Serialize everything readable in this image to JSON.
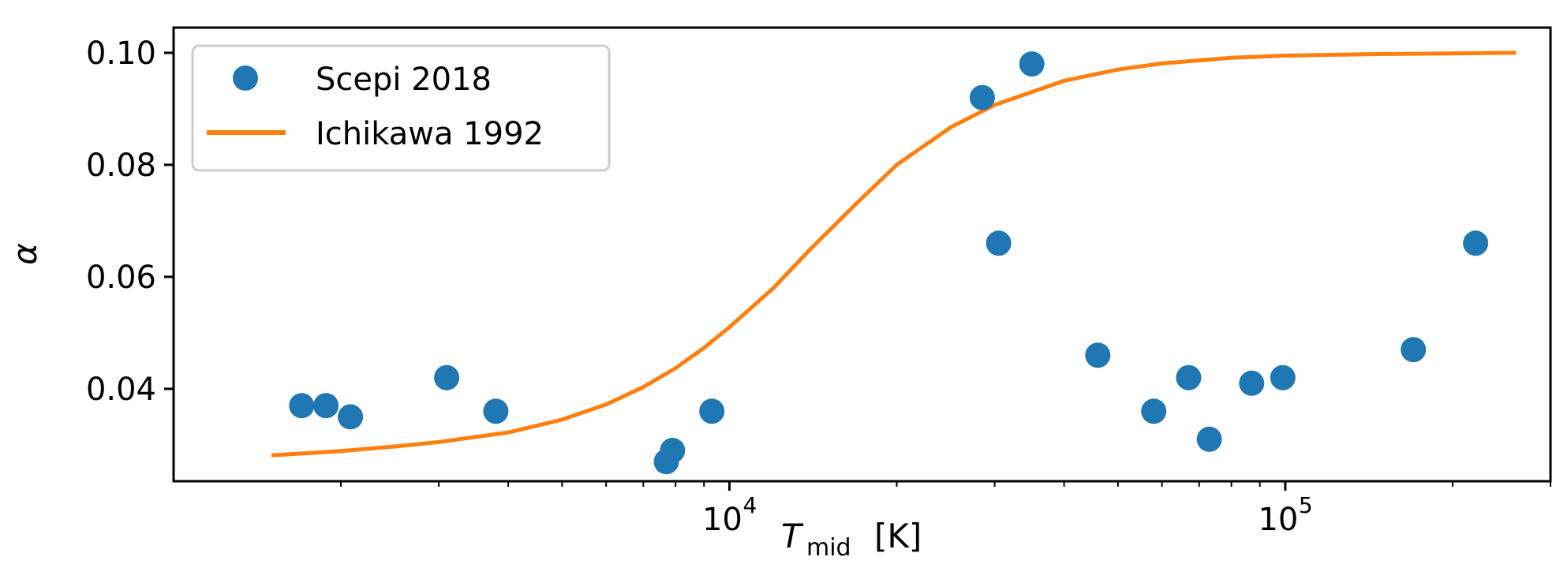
{
  "chart_data": {
    "type": "scatter",
    "title": "",
    "xlabel": "T",
    "xlabel_subscript": "mid",
    "xlabel_unit": "[K]",
    "ylabel": "α",
    "xscale": "log",
    "xlim": [
      1000,
      300000
    ],
    "ylim": [
      0.0235,
      0.1045
    ],
    "grid": false,
    "legend_position": "top-left",
    "x_ticks": [
      {
        "value": 10000,
        "base": "10",
        "exp": "4"
      },
      {
        "value": 100000,
        "base": "10",
        "exp": "5"
      }
    ],
    "y_ticks": [
      {
        "value": 0.04,
        "label": "0.04"
      },
      {
        "value": 0.06,
        "label": "0.06"
      },
      {
        "value": 0.08,
        "label": "0.08"
      },
      {
        "value": 0.1,
        "label": "0.10"
      }
    ],
    "series": [
      {
        "name": "Scepi 2018",
        "kind": "scatter",
        "color": "#1f77b4",
        "points": [
          {
            "x": 1700,
            "y": 0.037
          },
          {
            "x": 1880,
            "y": 0.037
          },
          {
            "x": 2080,
            "y": 0.035
          },
          {
            "x": 3100,
            "y": 0.042
          },
          {
            "x": 3800,
            "y": 0.036
          },
          {
            "x": 7700,
            "y": 0.027
          },
          {
            "x": 7900,
            "y": 0.029
          },
          {
            "x": 9300,
            "y": 0.036
          },
          {
            "x": 28500,
            "y": 0.092
          },
          {
            "x": 30500,
            "y": 0.066
          },
          {
            "x": 35000,
            "y": 0.098
          },
          {
            "x": 46000,
            "y": 0.046
          },
          {
            "x": 58000,
            "y": 0.036
          },
          {
            "x": 67000,
            "y": 0.042
          },
          {
            "x": 73000,
            "y": 0.031
          },
          {
            "x": 87000,
            "y": 0.041
          },
          {
            "x": 99000,
            "y": 0.042
          },
          {
            "x": 170000,
            "y": 0.047
          },
          {
            "x": 220000,
            "y": 0.066
          }
        ]
      },
      {
        "name": "Ichikawa 1992",
        "kind": "line",
        "color": "#ff7f0e",
        "points": [
          {
            "x": 1500,
            "y": 0.0281
          },
          {
            "x": 2000,
            "y": 0.0289
          },
          {
            "x": 2500,
            "y": 0.0297
          },
          {
            "x": 3000,
            "y": 0.0305
          },
          {
            "x": 4000,
            "y": 0.0322
          },
          {
            "x": 5000,
            "y": 0.0345
          },
          {
            "x": 6000,
            "y": 0.0372
          },
          {
            "x": 7000,
            "y": 0.0403
          },
          {
            "x": 8000,
            "y": 0.0437
          },
          {
            "x": 9000,
            "y": 0.0473
          },
          {
            "x": 10000,
            "y": 0.051
          },
          {
            "x": 12000,
            "y": 0.058
          },
          {
            "x": 14000,
            "y": 0.065
          },
          {
            "x": 17000,
            "y": 0.0733
          },
          {
            "x": 20000,
            "y": 0.08
          },
          {
            "x": 25000,
            "y": 0.0867
          },
          {
            "x": 30000,
            "y": 0.0907
          },
          {
            "x": 40000,
            "y": 0.095
          },
          {
            "x": 50000,
            "y": 0.097
          },
          {
            "x": 60000,
            "y": 0.0981
          },
          {
            "x": 80000,
            "y": 0.0991
          },
          {
            "x": 100000,
            "y": 0.0995
          },
          {
            "x": 150000,
            "y": 0.0998
          },
          {
            "x": 200000,
            "y": 0.0999
          },
          {
            "x": 260000,
            "y": 0.1
          }
        ]
      }
    ]
  }
}
